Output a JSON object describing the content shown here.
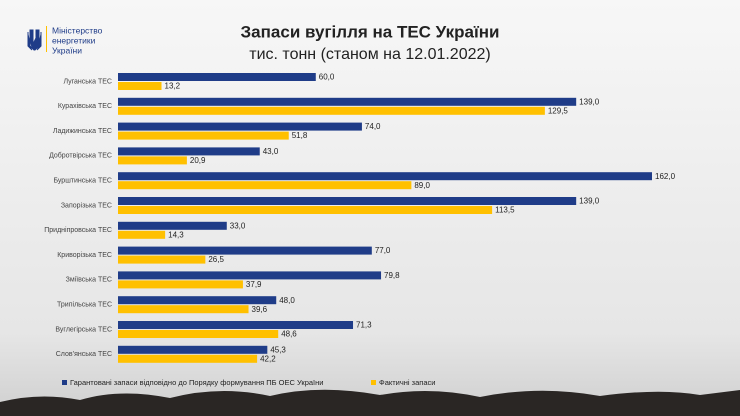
{
  "header": {
    "logo_lines": [
      "Міністерство",
      "енергетики",
      "України"
    ]
  },
  "chart_data": {
    "type": "bar",
    "orientation": "horizontal",
    "title": "Запаси вугілля на ТЕС України",
    "subtitle": "тис. тонн (станом на 12.01.2022)",
    "categories": [
      "Луганська ТЕС",
      "Курахівська ТЕС",
      "Ладижинська ТЕС",
      "Добротвірська ТЕС",
      "Бурштинська ТЕС",
      "Запорізька ТЕС",
      "Придніпровська ТЕС",
      "Криворізька ТЕС",
      "Зміївська ТЕС",
      "Трипільська ТЕС",
      "Вуглегірська ТЕС",
      "Слов’янська ТЕС"
    ],
    "series": [
      {
        "name": "Гарантовані запаси відповідно до Порядку формування ПБ ОЕС України",
        "color": "#1f3c88",
        "values": [
          60,
          139,
          74,
          43,
          162,
          139,
          33,
          77,
          79.8,
          48,
          71.3,
          45.3
        ],
        "value_labels": [
          "60,0",
          "139,0",
          "74,0",
          "43,0",
          "162,0",
          "139,0",
          "33,0",
          "77,0",
          "79,8",
          "48,0",
          "71,3",
          "45,3"
        ]
      },
      {
        "name": "Фактичні запаси",
        "color": "#ffc000",
        "values": [
          13.2,
          129.5,
          51.8,
          20.9,
          89,
          113.5,
          14.3,
          26.5,
          37.9,
          39.6,
          48.6,
          42.2
        ],
        "value_labels": [
          "13,2",
          "129,5",
          "51,8",
          "20,9",
          "89,0",
          "113,5",
          "14,3",
          "26,5",
          "37,9",
          "39,6",
          "48,6",
          "42,2"
        ]
      }
    ]
  }
}
